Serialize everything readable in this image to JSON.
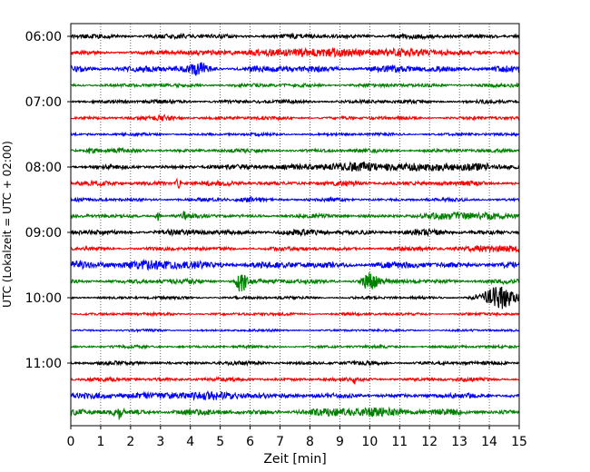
{
  "chart_data": {
    "type": "line",
    "title": "",
    "xlabel": "Zeit  [min]",
    "ylabel": "UTC (Lokalzeit = UTC + 02:00)",
    "xlim": [
      0,
      15
    ],
    "x_ticks": [
      "0",
      "1",
      "2",
      "3",
      "4",
      "5",
      "6",
      "7",
      "8",
      "9",
      "10",
      "11",
      "12",
      "13",
      "14",
      "15"
    ],
    "y_ticks": [
      "06:00",
      "07:00",
      "08:00",
      "09:00",
      "10:00",
      "11:00"
    ],
    "grid": "vertical dotted",
    "trace_interval_min": 15,
    "trace_colors": [
      "#000000",
      "#ff0000",
      "#0000ff",
      "#008000"
    ],
    "traces": [
      {
        "start": "06:00",
        "color": "#000000",
        "amplitude": 2.5,
        "bursts": []
      },
      {
        "start": "06:15",
        "color": "#ff0000",
        "amplitude": 2.0,
        "bursts": [
          {
            "t": 9,
            "amp": 3,
            "width": 3
          }
        ]
      },
      {
        "start": "06:30",
        "color": "#0000ff",
        "amplitude": 3.5,
        "bursts": [
          {
            "t": 4.3,
            "amp": 5,
            "width": 0.2
          }
        ]
      },
      {
        "start": "06:45",
        "color": "#008000",
        "amplitude": 2.0,
        "bursts": []
      },
      {
        "start": "07:00",
        "color": "#000000",
        "amplitude": 2.0,
        "bursts": []
      },
      {
        "start": "07:15",
        "color": "#ff0000",
        "amplitude": 1.8,
        "bursts": [
          {
            "t": 3.2,
            "amp": 2,
            "width": 0.3
          }
        ]
      },
      {
        "start": "07:30",
        "color": "#0000ff",
        "amplitude": 1.5,
        "bursts": []
      },
      {
        "start": "07:45",
        "color": "#008000",
        "amplitude": 2.0,
        "bursts": [
          {
            "t": 0.7,
            "amp": 5,
            "width": 0.1
          }
        ]
      },
      {
        "start": "08:00",
        "color": "#000000",
        "amplitude": 2.0,
        "bursts": [
          {
            "t": 11,
            "amp": 3,
            "width": 3
          }
        ]
      },
      {
        "start": "08:15",
        "color": "#ff0000",
        "amplitude": 2.5,
        "bursts": [
          {
            "t": 3.6,
            "amp": 6,
            "width": 0.05
          }
        ]
      },
      {
        "start": "08:30",
        "color": "#0000ff",
        "amplitude": 1.8,
        "bursts": [
          {
            "t": 6,
            "amp": 2,
            "width": 0.3
          }
        ]
      },
      {
        "start": "08:45",
        "color": "#008000",
        "amplitude": 2.0,
        "bursts": [
          {
            "t": 2.9,
            "amp": 5,
            "width": 0.05
          },
          {
            "t": 3.8,
            "amp": 4,
            "width": 0.05
          },
          {
            "t": 13.5,
            "amp": 3,
            "width": 1
          }
        ]
      },
      {
        "start": "09:00",
        "color": "#000000",
        "amplitude": 3.0,
        "bursts": []
      },
      {
        "start": "09:15",
        "color": "#ff0000",
        "amplitude": 2.0,
        "bursts": [
          {
            "t": 14.2,
            "amp": 3,
            "width": 0.8
          }
        ]
      },
      {
        "start": "09:30",
        "color": "#0000ff",
        "amplitude": 3.5,
        "bursts": [
          {
            "t": 2.5,
            "amp": 2,
            "width": 1.5
          }
        ]
      },
      {
        "start": "09:45",
        "color": "#008000",
        "amplitude": 2.5,
        "bursts": [
          {
            "t": 5.7,
            "amp": 16,
            "width": 0.1
          },
          {
            "t": 10,
            "amp": 8,
            "width": 0.2
          }
        ]
      },
      {
        "start": "10:00",
        "color": "#000000",
        "amplitude": 1.5,
        "bursts": [
          {
            "t": 14.3,
            "amp": 12,
            "width": 0.4
          }
        ]
      },
      {
        "start": "10:15",
        "color": "#ff0000",
        "amplitude": 1.5,
        "bursts": []
      },
      {
        "start": "10:30",
        "color": "#0000ff",
        "amplitude": 1.2,
        "bursts": []
      },
      {
        "start": "10:45",
        "color": "#008000",
        "amplitude": 1.5,
        "bursts": []
      },
      {
        "start": "11:00",
        "color": "#000000",
        "amplitude": 2.0,
        "bursts": []
      },
      {
        "start": "11:15",
        "color": "#ff0000",
        "amplitude": 2.0,
        "bursts": [
          {
            "t": 9.5,
            "amp": 4,
            "width": 0.05
          }
        ]
      },
      {
        "start": "11:30",
        "color": "#0000ff",
        "amplitude": 2.5,
        "bursts": [
          {
            "t": 4,
            "amp": 2,
            "width": 2
          }
        ]
      },
      {
        "start": "11:45",
        "color": "#008000",
        "amplitude": 3.0,
        "bursts": [
          {
            "t": 1.6,
            "amp": 7,
            "width": 0.1
          },
          {
            "t": 10,
            "amp": 3,
            "width": 1
          }
        ]
      }
    ]
  }
}
